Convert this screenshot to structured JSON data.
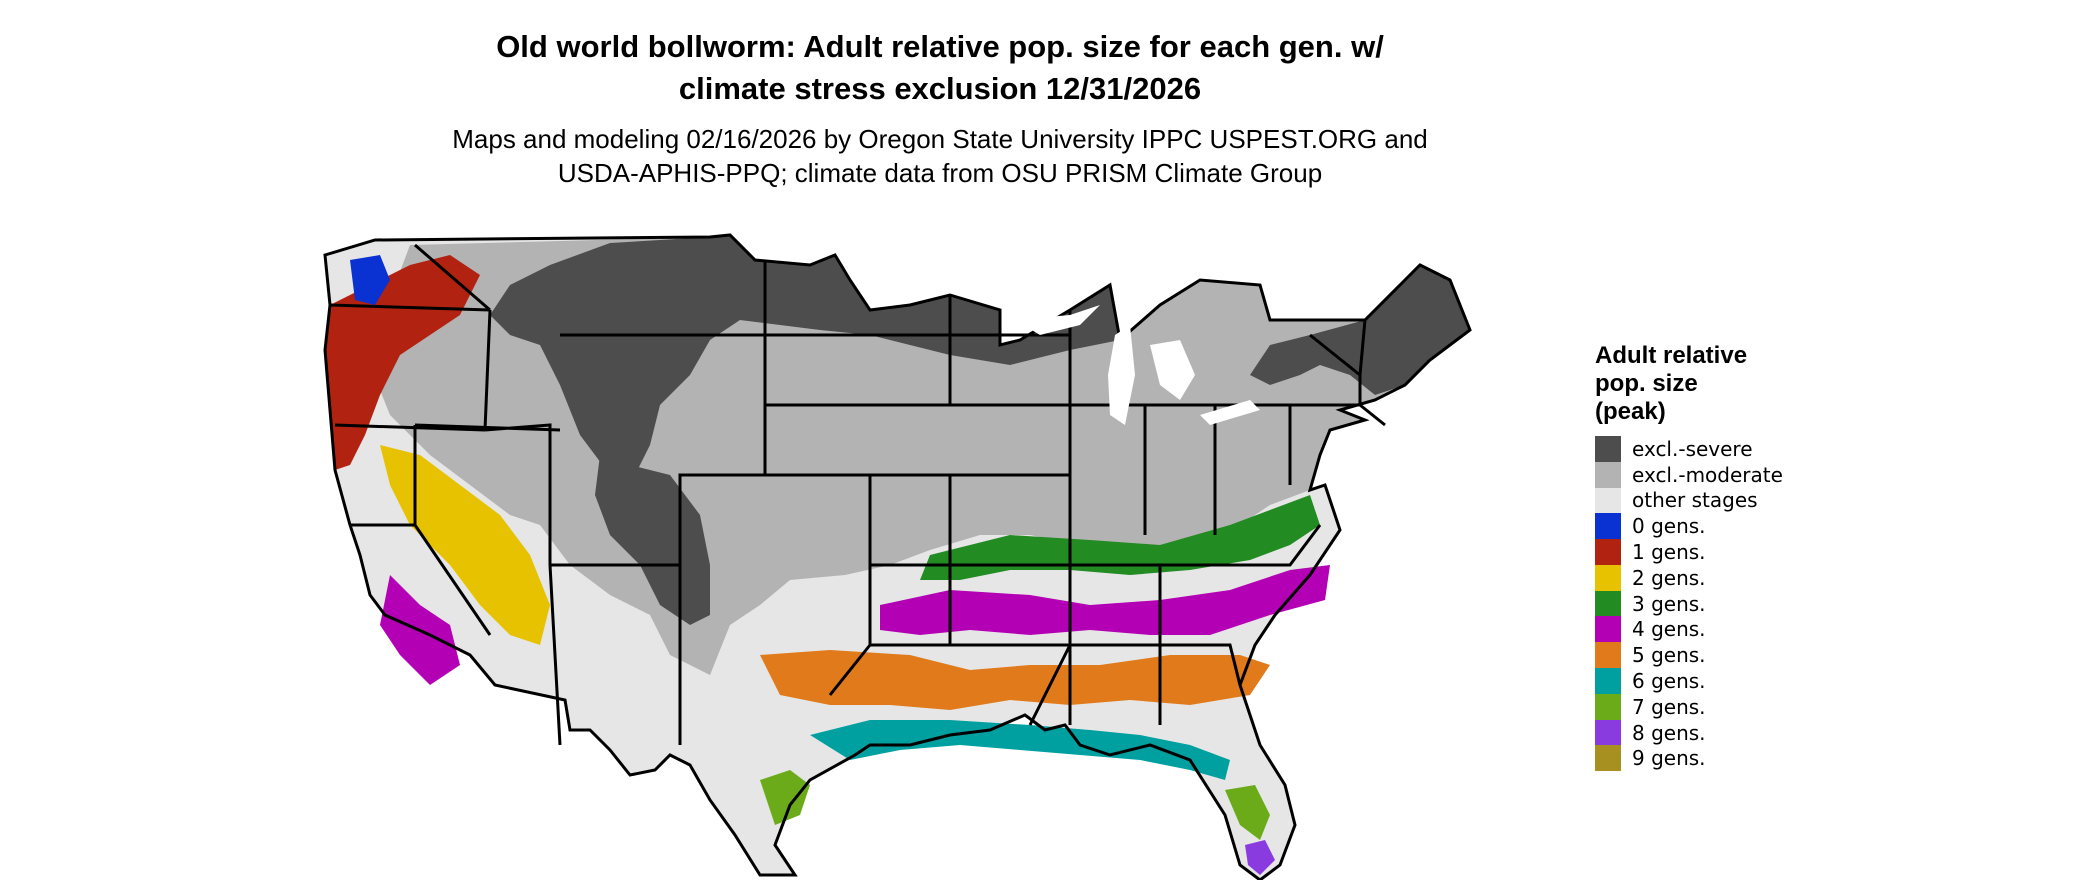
{
  "title_line1": "Old world bollworm: Adult relative pop. size for each gen. w/",
  "title_line2": "climate stress exclusion 12/31/2026",
  "subtitle_line1": "Maps and modeling 02/16/2026 by Oregon State University IPPC USPEST.ORG and",
  "subtitle_line2": "USDA-APHIS-PPQ; climate data from OSU PRISM Climate Group",
  "legend": {
    "title_line1": "Adult relative",
    "title_line2": "pop. size",
    "title_line3": "(peak)",
    "items": [
      {
        "label": "excl.-severe",
        "color": "#4d4d4d"
      },
      {
        "label": "excl.-moderate",
        "color": "#b3b3b3"
      },
      {
        "label": "other stages",
        "color": "#e6e6e6"
      },
      {
        "label": "0 gens.",
        "color": "#0a32d2"
      },
      {
        "label": "1 gens.",
        "color": "#b22210"
      },
      {
        "label": "2 gens.",
        "color": "#e6c200"
      },
      {
        "label": "3 gens.",
        "color": "#228b22"
      },
      {
        "label": "4 gens.",
        "color": "#b400b4"
      },
      {
        "label": "5 gens.",
        "color": "#e07a1a"
      },
      {
        "label": "6 gens.",
        "color": "#00a0a0"
      },
      {
        "label": "7 gens.",
        "color": "#6bab1a"
      },
      {
        "label": "8 gens.",
        "color": "#8a3be0"
      },
      {
        "label": "9 gens.",
        "color": "#a89020"
      }
    ]
  },
  "map_colors": {
    "severe": "#4d4d4d",
    "moderate": "#b3b3b3",
    "other": "#e6e6e6",
    "border": "#000000"
  }
}
